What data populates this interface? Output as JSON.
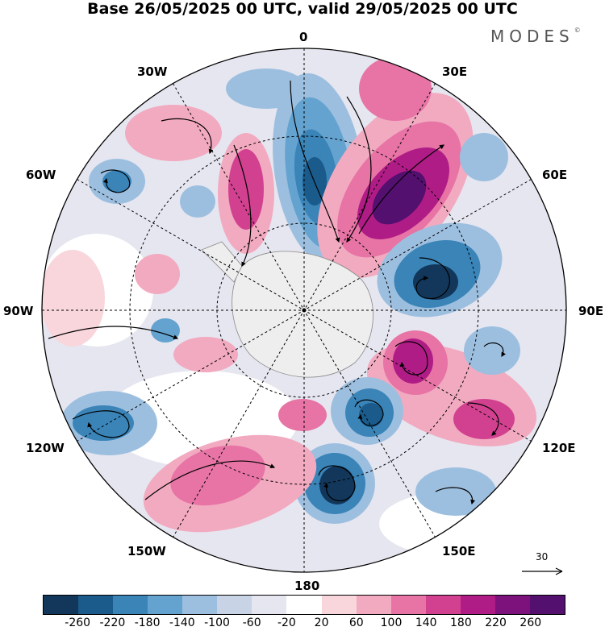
{
  "title": "Base 26/05/2025 00 UTC, valid 29/05/2025 00 UTC",
  "brand": "MODES",
  "brand_mark": "©",
  "lon_labels": {
    "l0": "0",
    "l30e": "30E",
    "l60e": "60E",
    "l90e": "90E",
    "l120e": "120E",
    "l150e": "150E",
    "l180": "180",
    "l150w": "150W",
    "l120w": "120W",
    "l90w": "90W",
    "l60w": "60W",
    "l30w": "30W"
  },
  "ref_vector": "30",
  "colorbar": {
    "colors": [
      "#12375a",
      "#1a5b8c",
      "#3a84b8",
      "#64a3d0",
      "#9dbfdf",
      "#c8d3e6",
      "#e6e6f0",
      "#ffffff",
      "#f8d6dc",
      "#f2aac0",
      "#e774a5",
      "#d1418f",
      "#b01c86",
      "#7e127c",
      "#53106e"
    ],
    "ticks": [
      "-260",
      "-220",
      "-180",
      "-140",
      "-100",
      "-60",
      "-20",
      "20",
      "60",
      "100",
      "140",
      "180",
      "220",
      "260"
    ]
  },
  "anomaly_blobs": [
    {
      "level": "#3a84b8",
      "place": "0° lon, mid-latitude"
    },
    {
      "level": "#53106e",
      "place": "30E-60E"
    },
    {
      "level": "#1a5b8c",
      "place": "75E"
    },
    {
      "level": "#b01c86",
      "place": "100E"
    },
    {
      "level": "#3a84b8",
      "place": "135E"
    },
    {
      "level": "#12375a",
      "place": "165E"
    },
    {
      "level": "#d1418f",
      "place": "45W"
    },
    {
      "level": "#e774a5",
      "place": "150W"
    },
    {
      "level": "#64a3d0",
      "place": "110W"
    }
  ]
}
